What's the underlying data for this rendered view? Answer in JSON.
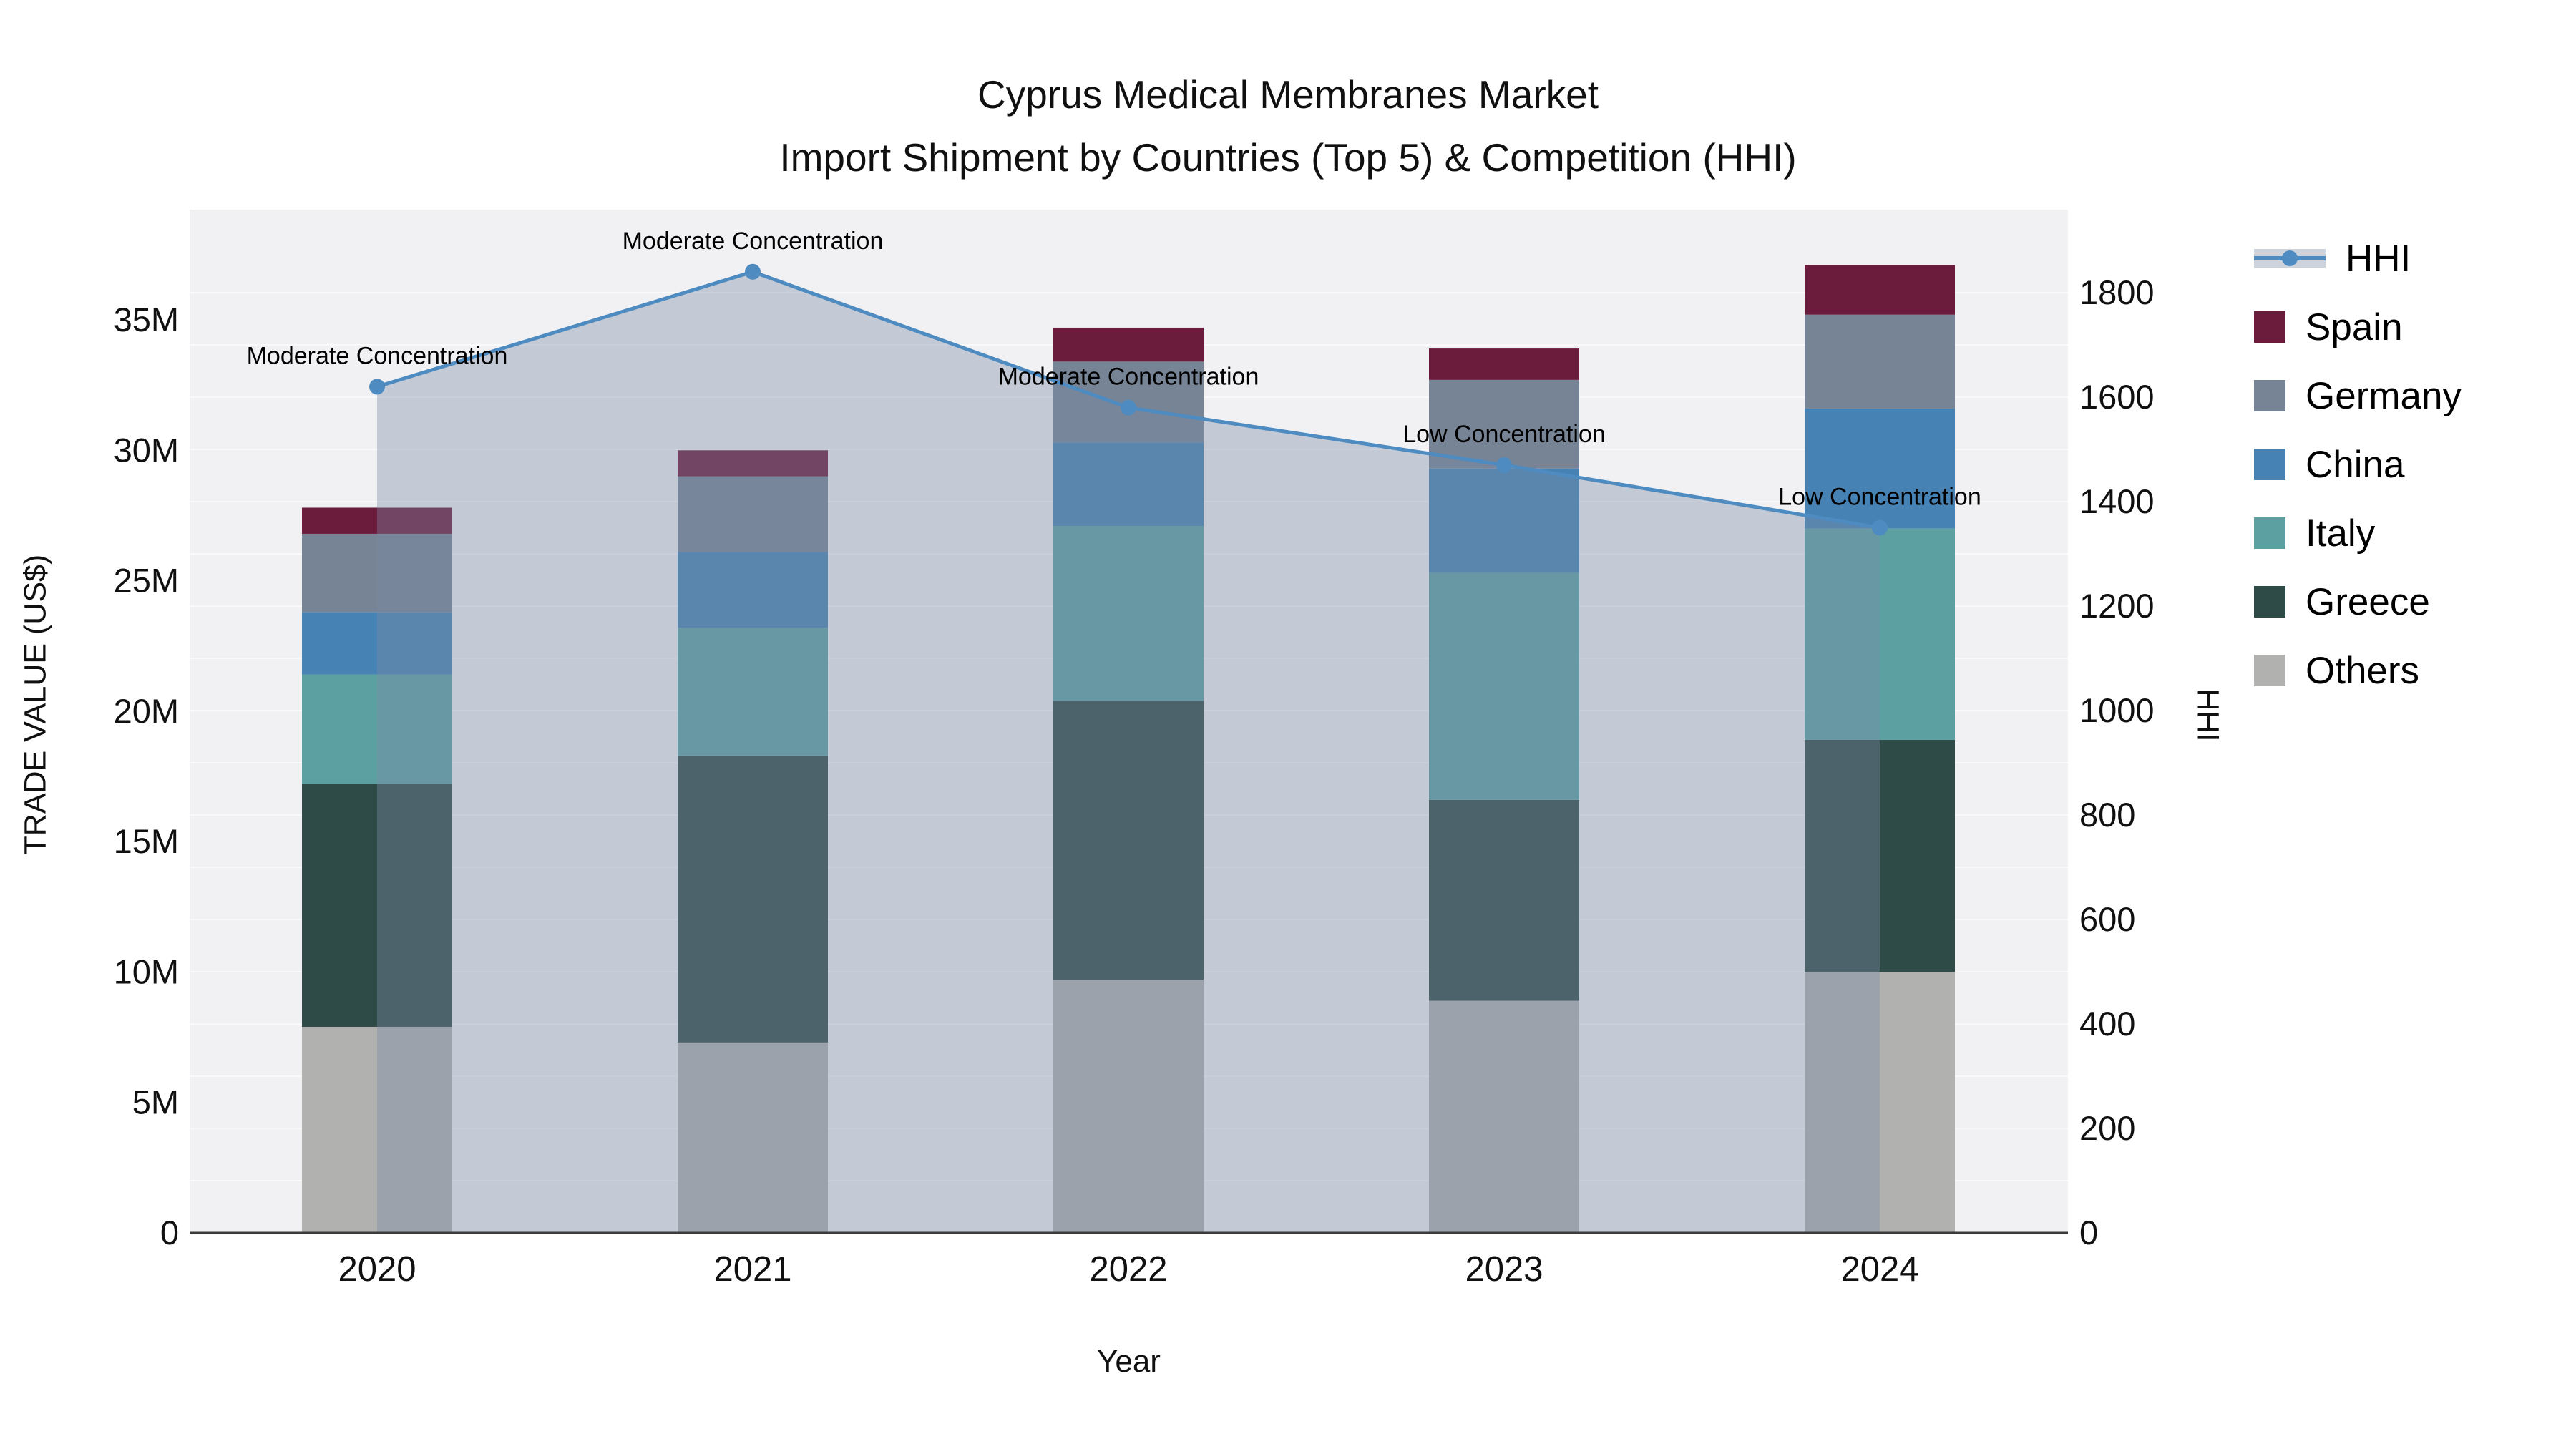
{
  "title": {
    "line1": "Cyprus Medical Membranes Market",
    "line2": "Import Shipment by Countries (Top 5) & Competition (HHI)"
  },
  "axes": {
    "x": {
      "label": "Year"
    },
    "y_left": {
      "label": "TRADE VALUE (US$)",
      "tick_labels": [
        "0",
        "5M",
        "10M",
        "15M",
        "20M",
        "25M",
        "30M",
        "35M"
      ],
      "tick_step_millions": 5,
      "max_millions": 35
    },
    "y_right": {
      "label": "HHI",
      "tick_labels": [
        "0",
        "200",
        "400",
        "600",
        "800",
        "1000",
        "1200",
        "1400",
        "1600",
        "1800"
      ],
      "tick_step": 200,
      "max": 1800
    }
  },
  "legend": [
    {
      "label": "HHI",
      "type": "line",
      "color": "#4e8bc0"
    },
    {
      "label": "Spain",
      "type": "box",
      "color": "#6b1b3b"
    },
    {
      "label": "Germany",
      "type": "box",
      "color": "#778495"
    },
    {
      "label": "China",
      "type": "box",
      "color": "#4683b4"
    },
    {
      "label": "Italy",
      "type": "box",
      "color": "#5ca0a2"
    },
    {
      "label": "Greece",
      "type": "box",
      "color": "#2f4b47"
    },
    {
      "label": "Others",
      "type": "box",
      "color": "#b1b1af"
    }
  ],
  "chart_data": {
    "type": "combo_stacked_bar_and_line",
    "categories": [
      "2020",
      "2021",
      "2022",
      "2023",
      "2024"
    ],
    "bar_value_unit": "million US$",
    "series": [
      {
        "name": "Others",
        "color": "#b1b1af",
        "values": [
          7.9,
          7.3,
          9.7,
          8.9,
          10.0
        ]
      },
      {
        "name": "Greece",
        "color": "#2f4b47",
        "values": [
          9.3,
          11.0,
          10.7,
          7.7,
          8.9
        ]
      },
      {
        "name": "Italy",
        "color": "#5ca0a2",
        "values": [
          4.2,
          4.9,
          6.7,
          8.7,
          8.1
        ]
      },
      {
        "name": "China",
        "color": "#4683b4",
        "values": [
          2.4,
          2.9,
          3.2,
          4.0,
          4.6
        ]
      },
      {
        "name": "Germany",
        "color": "#778495",
        "values": [
          3.0,
          2.9,
          3.1,
          3.4,
          3.6
        ]
      },
      {
        "name": "Spain",
        "color": "#6b1b3b",
        "values": [
          1.0,
          1.0,
          1.3,
          1.2,
          1.9
        ]
      }
    ],
    "bar_totals_millions": [
      27.8,
      30.0,
      34.7,
      33.9,
      37.1
    ],
    "line_series": {
      "name": "HHI",
      "color": "#4e8bc0",
      "area_fill": "rgba(124,139,166,0.38)",
      "values": [
        1620,
        1840,
        1580,
        1470,
        1350
      ]
    },
    "annotations": [
      {
        "category": "2020",
        "text": "Moderate Concentration"
      },
      {
        "category": "2021",
        "text": "Moderate Concentration"
      },
      {
        "category": "2022",
        "text": "Moderate Concentration"
      },
      {
        "category": "2023",
        "text": "Low Concentration"
      },
      {
        "category": "2024",
        "text": "Low Concentration"
      }
    ],
    "axis_ranges": {
      "y_left_millions": [
        0,
        35
      ],
      "y_right_hhi": [
        0,
        1800
      ]
    },
    "grid": {
      "on": true,
      "interval_hhi": 100
    },
    "legend_position": "right"
  },
  "plot_style": {
    "plot_bg": "#f1f1f3",
    "grid_color": "rgba(255,255,255,0.6)",
    "axis_line_color": "#3b3b3b",
    "text_color": "#101010"
  }
}
